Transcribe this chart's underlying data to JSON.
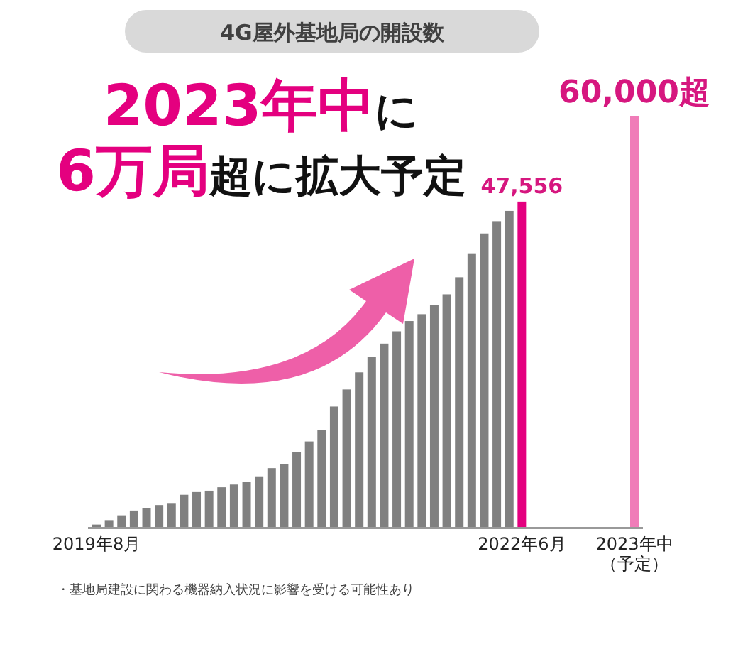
{
  "chart_data": {
    "type": "bar",
    "title": "4G屋外基地局の開設数",
    "subtitle": "**2023年中**に\n**6万局**超に拡大予定",
    "categories": [
      "2019年8月",
      null,
      null,
      null,
      null,
      null,
      null,
      null,
      null,
      null,
      null,
      null,
      null,
      null,
      null,
      null,
      null,
      null,
      null,
      null,
      null,
      null,
      null,
      null,
      null,
      null,
      null,
      null,
      null,
      null,
      null,
      null,
      null,
      null,
      "2022年6月",
      null,
      null,
      null,
      null,
      null,
      null,
      null,
      null,
      "2023年中（予定）"
    ],
    "series": [
      {
        "colors": [
          "#808080",
          "#808080",
          "#808080",
          "#808080",
          "#808080",
          "#808080",
          "#808080",
          "#808080",
          "#808080",
          "#808080",
          "#808080",
          "#808080",
          "#808080",
          "#808080",
          "#808080",
          "#808080",
          "#808080",
          "#808080",
          "#808080",
          "#808080",
          "#808080",
          "#808080",
          "#808080",
          "#808080",
          "#808080",
          "#808080",
          "#808080",
          "#808080",
          "#808080",
          "#808080",
          "#808080",
          "#808080",
          "#808080",
          "#808080",
          "#e4007f",
          null,
          null,
          null,
          null,
          null,
          null,
          null,
          null,
          "#f07cb8"
        ],
        "values": [
          350,
          1000,
          1700,
          2400,
          2800,
          3200,
          3500,
          4700,
          5100,
          5300,
          5800,
          6200,
          6600,
          7400,
          8600,
          9200,
          10900,
          12500,
          14200,
          17600,
          20100,
          22600,
          24900,
          26800,
          28600,
          30100,
          31100,
          32400,
          34000,
          36500,
          40000,
          42900,
          44700,
          46200,
          47556,
          null,
          null,
          null,
          null,
          null,
          null,
          null,
          null,
          60000
        ],
        "value_labels": [
          null,
          null,
          null,
          null,
          null,
          null,
          null,
          null,
          null,
          null,
          null,
          null,
          null,
          null,
          null,
          null,
          null,
          null,
          null,
          null,
          null,
          null,
          null,
          null,
          null,
          null,
          null,
          null,
          null,
          null,
          null,
          null,
          null,
          null,
          "47,556",
          null,
          null,
          null,
          null,
          null,
          null,
          null,
          null,
          "60,000超"
        ]
      }
    ],
    "annotations": [
      "・基地局建設に関わる機器納入状況に影響を受ける可能性あり"
    ]
  }
}
